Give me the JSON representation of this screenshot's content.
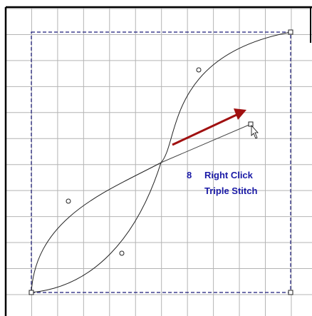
{
  "step": "8",
  "instruction": "Right Click",
  "stitch": "Triple Stitch"
}
